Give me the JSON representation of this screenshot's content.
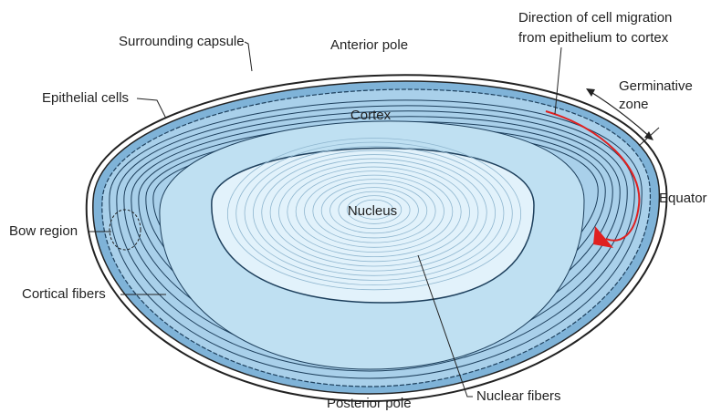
{
  "labels": {
    "surrounding_capsule": "Surrounding capsule",
    "anterior_pole": "Anterior pole",
    "direction": [
      "Direction of cell migration",
      "from epithelium to cortex"
    ],
    "germinative_zone": [
      "Germinative",
      "zone"
    ],
    "epithelial_cells": "Epithelial cells",
    "cortex": "Cortex",
    "nucleus": "Nucleus",
    "equator": "Equator",
    "bow_region": "Bow region",
    "cortical_fibers": "Cortical fibers",
    "posterior_pole": "Posterior pole",
    "nuclear_fibers": "Nuclear fibers"
  }
}
